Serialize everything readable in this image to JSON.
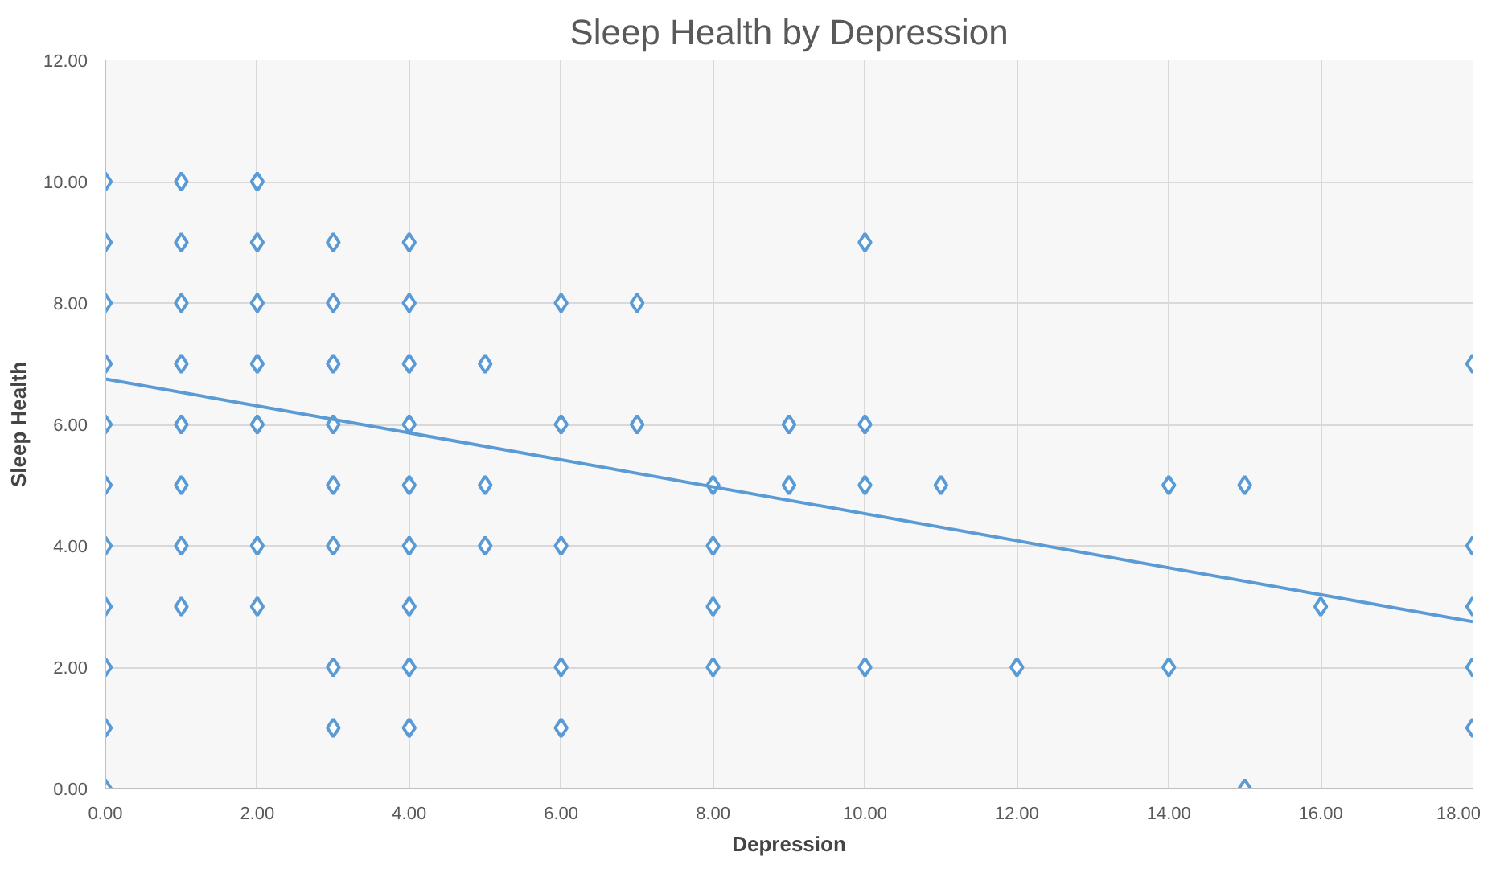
{
  "chart_data": {
    "type": "scatter",
    "title": "Sleep Health by Depression",
    "xlabel": "Depression",
    "ylabel": "Sleep Health",
    "xlim": [
      0,
      18
    ],
    "ylim": [
      0,
      12
    ],
    "xticks": [
      {
        "value": 0,
        "label": "0.00"
      },
      {
        "value": 2,
        "label": "2.00"
      },
      {
        "value": 4,
        "label": "4.00"
      },
      {
        "value": 6,
        "label": "6.00"
      },
      {
        "value": 8,
        "label": "8.00"
      },
      {
        "value": 10,
        "label": "10.00"
      },
      {
        "value": 12,
        "label": "12.00"
      },
      {
        "value": 14,
        "label": "14.00"
      },
      {
        "value": 16,
        "label": "16.00"
      },
      {
        "value": 18,
        "label": "18.00"
      }
    ],
    "yticks": [
      {
        "value": 0,
        "label": "0.00"
      },
      {
        "value": 2,
        "label": "2.00"
      },
      {
        "value": 4,
        "label": "4.00"
      },
      {
        "value": 6,
        "label": "6.00"
      },
      {
        "value": 8,
        "label": "8.00"
      },
      {
        "value": 10,
        "label": "10.00"
      },
      {
        "value": 12,
        "label": "12.00"
      }
    ],
    "grid": true,
    "series": [
      {
        "marker": "diamond",
        "color": "#5b9bd5",
        "x": [
          0,
          0,
          0,
          0,
          0,
          0,
          0,
          0,
          0,
          0,
          0,
          1,
          1,
          1,
          1,
          1,
          1,
          1,
          1,
          2,
          2,
          2,
          2,
          2,
          2,
          2,
          3,
          3,
          3,
          3,
          3,
          3,
          3,
          3,
          4,
          4,
          4,
          4,
          4,
          4,
          4,
          4,
          4,
          5,
          5,
          5,
          6,
          6,
          6,
          6,
          6,
          7,
          7,
          8,
          8,
          8,
          8,
          9,
          9,
          10,
          10,
          10,
          10,
          11,
          12,
          14,
          14,
          15,
          15,
          16,
          18,
          18,
          18,
          18,
          18
        ],
        "values": [
          10,
          9,
          8,
          7,
          6,
          5,
          4,
          3,
          2,
          1,
          0,
          10,
          9,
          8,
          7,
          6,
          5,
          4,
          3,
          10,
          9,
          8,
          7,
          6,
          4,
          3,
          9,
          8,
          7,
          6,
          5,
          4,
          2,
          1,
          9,
          8,
          7,
          6,
          5,
          4,
          3,
          2,
          1,
          7,
          5,
          4,
          8,
          6,
          4,
          2,
          1,
          8,
          6,
          5,
          4,
          3,
          2,
          6,
          5,
          9,
          6,
          5,
          2,
          5,
          2,
          5,
          2,
          5,
          0,
          3,
          7,
          4,
          3,
          2,
          1
        ]
      },
      {
        "type": "line",
        "marker": "none",
        "color": "#5b9bd5",
        "x": [
          0,
          18
        ],
        "values": [
          6.75,
          2.75
        ]
      }
    ]
  }
}
